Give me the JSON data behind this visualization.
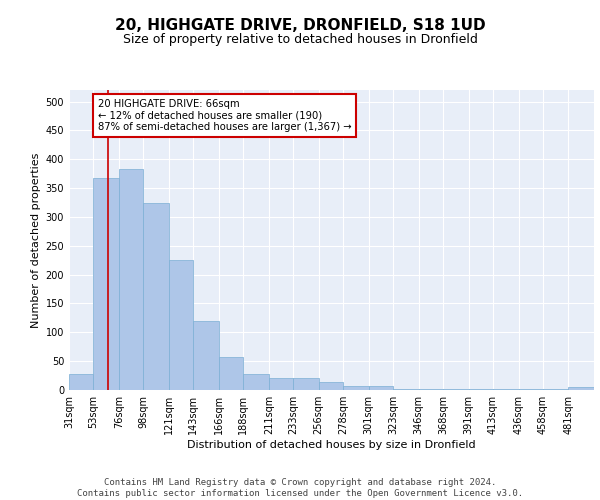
{
  "title": "20, HIGHGATE DRIVE, DRONFIELD, S18 1UD",
  "subtitle": "Size of property relative to detached houses in Dronfield",
  "xlabel": "Distribution of detached houses by size in Dronfield",
  "ylabel": "Number of detached properties",
  "footer_line1": "Contains HM Land Registry data © Crown copyright and database right 2024.",
  "footer_line2": "Contains public sector information licensed under the Open Government Licence v3.0.",
  "bar_edges": [
    31,
    53,
    76,
    98,
    121,
    143,
    166,
    188,
    211,
    233,
    256,
    278,
    301,
    323,
    346,
    368,
    391,
    413,
    436,
    458,
    481
  ],
  "bar_heights": [
    28,
    368,
    383,
    324,
    226,
    120,
    57,
    28,
    20,
    20,
    14,
    7,
    7,
    2,
    2,
    2,
    2,
    2,
    2,
    2,
    5
  ],
  "bar_color": "#aec6e8",
  "bar_edge_color": "#7bafd4",
  "red_line_x": 66,
  "annotation_text_line1": "20 HIGHGATE DRIVE: 66sqm",
  "annotation_text_line2": "← 12% of detached houses are smaller (190)",
  "annotation_text_line3": "87% of semi-detached houses are larger (1,367) →",
  "annotation_box_color": "#ffffff",
  "annotation_border_color": "#cc0000",
  "ylim": [
    0,
    520
  ],
  "background_color": "#e8eef8",
  "grid_color": "#ffffff",
  "title_fontsize": 11,
  "subtitle_fontsize": 9,
  "axis_label_fontsize": 8,
  "tick_fontsize": 7,
  "footer_fontsize": 6.5,
  "ylabel_fontsize": 8
}
